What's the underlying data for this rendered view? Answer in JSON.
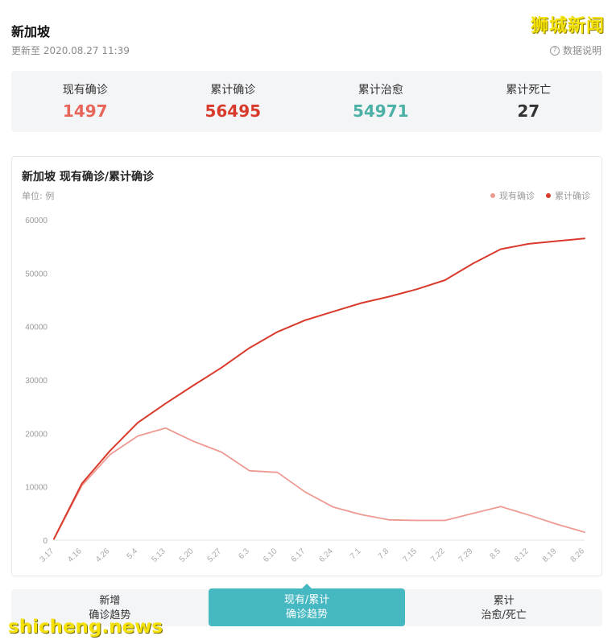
{
  "header": {
    "title": "新加坡",
    "updated": "更新至 2020.08.27 11:39",
    "help_label": "数据说明",
    "help_icon": "question-circle-icon"
  },
  "watermarks": {
    "top": "狮城新闻",
    "bottom": "shicheng.news"
  },
  "stats": [
    {
      "label": "现有确诊",
      "value": "1497",
      "color": "#e8655a"
    },
    {
      "label": "累计确诊",
      "value": "56495",
      "color": "#d83a2c"
    },
    {
      "label": "累计治愈",
      "value": "54971",
      "color": "#4bb0a5"
    },
    {
      "label": "累计死亡",
      "value": "27",
      "color": "#333333"
    }
  ],
  "chart_card": {
    "title": "新加坡 现有确诊/累计确诊",
    "unit": "单位: 例"
  },
  "chart_data": {
    "type": "line",
    "x": [
      "3.17",
      "4.16",
      "4.26",
      "5.4",
      "5.13",
      "5.20",
      "5.27",
      "6.3",
      "6.10",
      "6.17",
      "6.24",
      "7.1",
      "7.8",
      "7.15",
      "7.22",
      "7.29",
      "8.5",
      "8.12",
      "8.19",
      "8.26"
    ],
    "ylim": [
      0,
      60000
    ],
    "yticks": [
      0,
      10000,
      20000,
      30000,
      40000,
      50000,
      60000
    ],
    "series": [
      {
        "name": "现有确诊",
        "color": "#ee9a92",
        "values": [
          200,
          10200,
          16000,
          19500,
          21000,
          18500,
          16500,
          13000,
          12700,
          9000,
          6200,
          4800,
          3800,
          3700,
          3700,
          5000,
          6300,
          4700,
          3000,
          1497
        ]
      },
      {
        "name": "累计确诊",
        "color": "#d83a2c",
        "values": [
          250,
          10600,
          16700,
          22000,
          25600,
          29000,
          32300,
          36000,
          39000,
          41200,
          42800,
          44400,
          45600,
          47000,
          48700,
          51800,
          54500,
          55500,
          56000,
          56495
        ]
      }
    ]
  },
  "tabs": [
    {
      "line1": "新增",
      "line2": "确诊趋势",
      "active": false
    },
    {
      "line1": "现有/累计",
      "line2": "确诊趋势",
      "active": true
    },
    {
      "line1": "累计",
      "line2": "治愈/死亡",
      "active": false
    }
  ]
}
